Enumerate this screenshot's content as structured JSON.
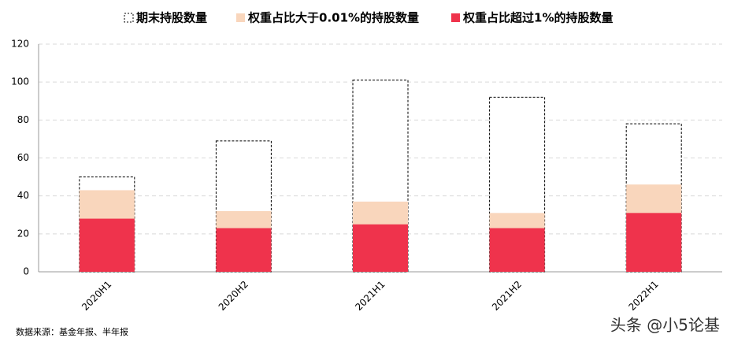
{
  "chart_data": {
    "type": "overlay-bar",
    "categories": [
      "2020H1",
      "2020H2",
      "2021H1",
      "2021H2",
      "2022H1"
    ],
    "series": [
      {
        "name": "期末持股数量",
        "color": "#000000",
        "dashed": true,
        "values": [
          50,
          69,
          101,
          92,
          78
        ]
      },
      {
        "name": "权重占比大于0.01%的持股数量",
        "color": "#f9d6bc",
        "values": [
          43,
          32,
          37,
          31,
          46
        ]
      },
      {
        "name": "权重占比超过1%的持股数量",
        "color": "#ef334c",
        "values": [
          28,
          23,
          25,
          23,
          31
        ]
      }
    ],
    "ylim": [
      0,
      120
    ],
    "yticks": [
      0,
      20,
      40,
      60,
      80,
      100,
      120
    ],
    "grid": true,
    "legend": "top",
    "source": "数据来源：基金年报、半年报",
    "watermark": "头条 @小5论基"
  }
}
